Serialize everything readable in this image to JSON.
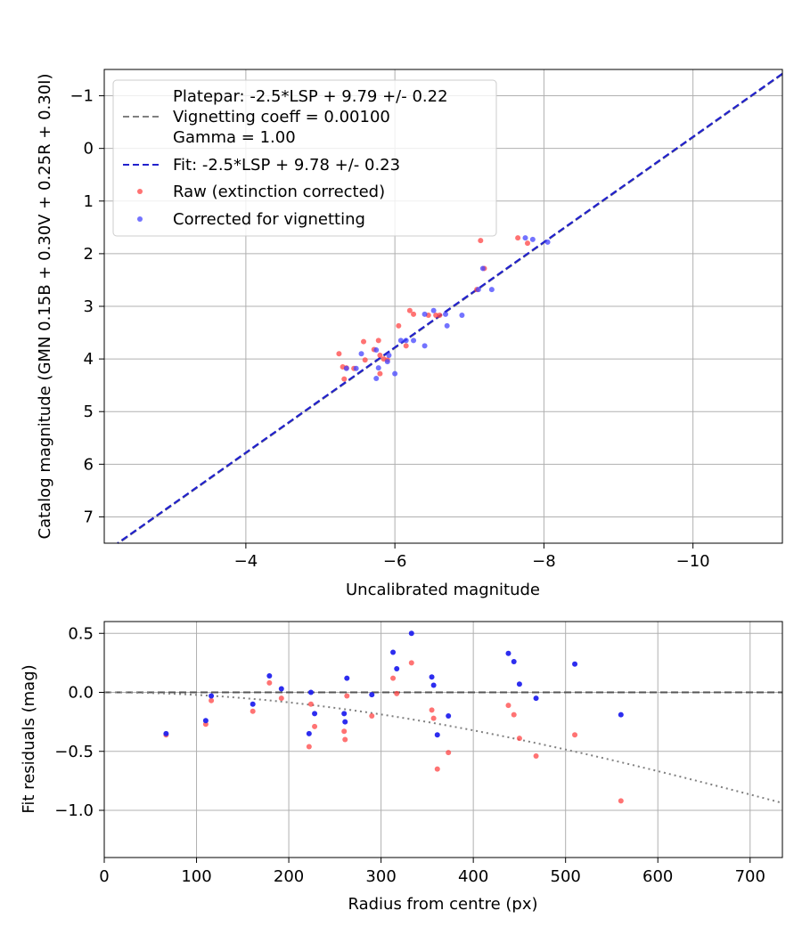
{
  "chart_data": [
    {
      "type": "scatter",
      "title": "",
      "xlabel": "Uncalibrated magnitude",
      "ylabel": "Catalog magnitude (GMN 0.15B + 0.30V + 0.25R + 0.30I)",
      "xlim": [
        -2.1,
        -11.2
      ],
      "ylim": [
        7.5,
        -1.5
      ],
      "x_inverted": true,
      "y_inverted": true,
      "xticks": [
        -4,
        -6,
        -8,
        -10
      ],
      "xtick_labels": [
        "−4",
        "−6",
        "−8",
        "−10"
      ],
      "yticks": [
        -1,
        0,
        1,
        2,
        3,
        4,
        5,
        6,
        7
      ],
      "ytick_labels": [
        "−1",
        "0",
        "1",
        "2",
        "3",
        "4",
        "5",
        "6",
        "7"
      ],
      "grid": true,
      "legend_position": "top-left",
      "legend": [
        {
          "label_lines": [
            "Platepar: -2.5*LSP + 9.79 +/- 0.22",
            "Vignetting coeff = 0.00100",
            "Gamma = 1.00"
          ],
          "style": "dashed",
          "color": "#808080"
        },
        {
          "label_lines": [
            "Fit: -2.5*LSP + 9.78 +/- 0.23"
          ],
          "style": "dashed",
          "color": "#2222cc"
        },
        {
          "label_lines": [
            "Raw (extinction corrected)"
          ],
          "style": "marker",
          "color": "#ff4444"
        },
        {
          "label_lines": [
            "Corrected for vignetting"
          ],
          "style": "marker",
          "color": "#4444ff"
        }
      ],
      "lines": [
        {
          "name": "Platepar",
          "slope": 1,
          "intercept": 9.79,
          "color": "#808080",
          "style": "dashed"
        },
        {
          "name": "Fit",
          "slope": 1,
          "intercept": 9.78,
          "color": "#2222cc",
          "style": "dashed"
        }
      ],
      "series": [
        {
          "name": "Raw (extinction corrected)",
          "color": "#ff4444",
          "points": [
            [
              -5.25,
              3.9
            ],
            [
              -5.3,
              4.15
            ],
            [
              -5.32,
              4.38
            ],
            [
              -5.35,
              4.17
            ],
            [
              -5.45,
              4.18
            ],
            [
              -5.58,
              3.67
            ],
            [
              -5.6,
              4.02
            ],
            [
              -5.72,
              3.82
            ],
            [
              -5.78,
              3.65
            ],
            [
              -5.8,
              3.93
            ],
            [
              -5.8,
              4.28
            ],
            [
              -5.85,
              4.0
            ],
            [
              -5.9,
              4.02
            ],
            [
              -6.05,
              3.37
            ],
            [
              -6.15,
              3.75
            ],
            [
              -6.2,
              3.08
            ],
            [
              -6.25,
              3.15
            ],
            [
              -6.45,
              3.17
            ],
            [
              -6.55,
              3.17
            ],
            [
              -6.6,
              3.17
            ],
            [
              -7.1,
              2.68
            ],
            [
              -7.15,
              1.75
            ],
            [
              -7.2,
              2.28
            ],
            [
              -7.65,
              1.7
            ],
            [
              -7.78,
              1.8
            ]
          ]
        },
        {
          "name": "Corrected for vignetting",
          "color": "#4444ff",
          "points": [
            [
              -5.35,
              4.18
            ],
            [
              -5.48,
              4.18
            ],
            [
              -5.55,
              3.9
            ],
            [
              -5.75,
              3.83
            ],
            [
              -5.75,
              4.37
            ],
            [
              -5.78,
              4.17
            ],
            [
              -5.9,
              4.05
            ],
            [
              -5.92,
              3.93
            ],
            [
              -6.0,
              4.28
            ],
            [
              -6.08,
              3.65
            ],
            [
              -6.15,
              3.65
            ],
            [
              -6.25,
              3.65
            ],
            [
              -6.4,
              3.15
            ],
            [
              -6.4,
              3.75
            ],
            [
              -6.52,
              3.08
            ],
            [
              -6.68,
              3.15
            ],
            [
              -6.7,
              3.37
            ],
            [
              -6.9,
              3.17
            ],
            [
              -7.12,
              2.68
            ],
            [
              -7.18,
              2.28
            ],
            [
              -7.3,
              2.68
            ],
            [
              -7.75,
              1.7
            ],
            [
              -7.85,
              1.73
            ],
            [
              -8.05,
              1.78
            ]
          ]
        }
      ]
    },
    {
      "type": "scatter",
      "title": "",
      "xlabel": "Radius from centre (px)",
      "ylabel": "Fit residuals (mag)",
      "xlim": [
        0,
        735
      ],
      "ylim": [
        -1.4,
        0.6
      ],
      "xticks": [
        0,
        100,
        200,
        300,
        400,
        500,
        600,
        700
      ],
      "xtick_labels": [
        "0",
        "100",
        "200",
        "300",
        "400",
        "500",
        "600",
        "700"
      ],
      "yticks": [
        0.5,
        0.0,
        -0.5,
        -1.0
      ],
      "ytick_labels": [
        "0.5",
        "0.0",
        "−0.5",
        "−1.0"
      ],
      "grid": true,
      "lines": [
        {
          "name": "Zero line",
          "type": "horizontal",
          "y": 0,
          "color": "#555555",
          "style": "dashed"
        },
        {
          "name": "Vignetting curve",
          "type": "vignetting",
          "coeff": 0.001,
          "color": "#808080",
          "style": "dotted"
        }
      ],
      "series": [
        {
          "name": "Raw (extinction corrected)",
          "color": "#ff4444",
          "points": [
            [
              67,
              -0.36
            ],
            [
              110,
              -0.27
            ],
            [
              116,
              -0.07
            ],
            [
              161,
              -0.16
            ],
            [
              179,
              0.08
            ],
            [
              192,
              -0.05
            ],
            [
              222,
              -0.46
            ],
            [
              224,
              -0.1
            ],
            [
              228,
              -0.29
            ],
            [
              260,
              -0.33
            ],
            [
              261,
              -0.4
            ],
            [
              263,
              -0.03
            ],
            [
              290,
              -0.2
            ],
            [
              313,
              0.12
            ],
            [
              317,
              -0.01
            ],
            [
              333,
              0.25
            ],
            [
              355,
              -0.15
            ],
            [
              357,
              -0.22
            ],
            [
              361,
              -0.65
            ],
            [
              373,
              -0.51
            ],
            [
              438,
              -0.11
            ],
            [
              444,
              -0.19
            ],
            [
              450,
              -0.39
            ],
            [
              468,
              -0.54
            ],
            [
              510,
              -0.36
            ],
            [
              560,
              -0.92
            ]
          ]
        },
        {
          "name": "Corrected for vignetting",
          "color": "#2222ee",
          "points": [
            [
              67,
              -0.35
            ],
            [
              110,
              -0.24
            ],
            [
              116,
              -0.03
            ],
            [
              161,
              -0.1
            ],
            [
              179,
              0.14
            ],
            [
              192,
              0.03
            ],
            [
              222,
              -0.35
            ],
            [
              224,
              0.0
            ],
            [
              228,
              -0.18
            ],
            [
              260,
              -0.18
            ],
            [
              261,
              -0.25
            ],
            [
              263,
              0.12
            ],
            [
              290,
              -0.02
            ],
            [
              313,
              0.34
            ],
            [
              317,
              0.2
            ],
            [
              333,
              0.5
            ],
            [
              355,
              0.13
            ],
            [
              357,
              0.06
            ],
            [
              361,
              -0.36
            ],
            [
              373,
              -0.2
            ],
            [
              438,
              0.33
            ],
            [
              444,
              0.26
            ],
            [
              450,
              0.07
            ],
            [
              468,
              -0.05
            ],
            [
              510,
              0.24
            ],
            [
              560,
              -0.19
            ]
          ]
        }
      ]
    }
  ]
}
